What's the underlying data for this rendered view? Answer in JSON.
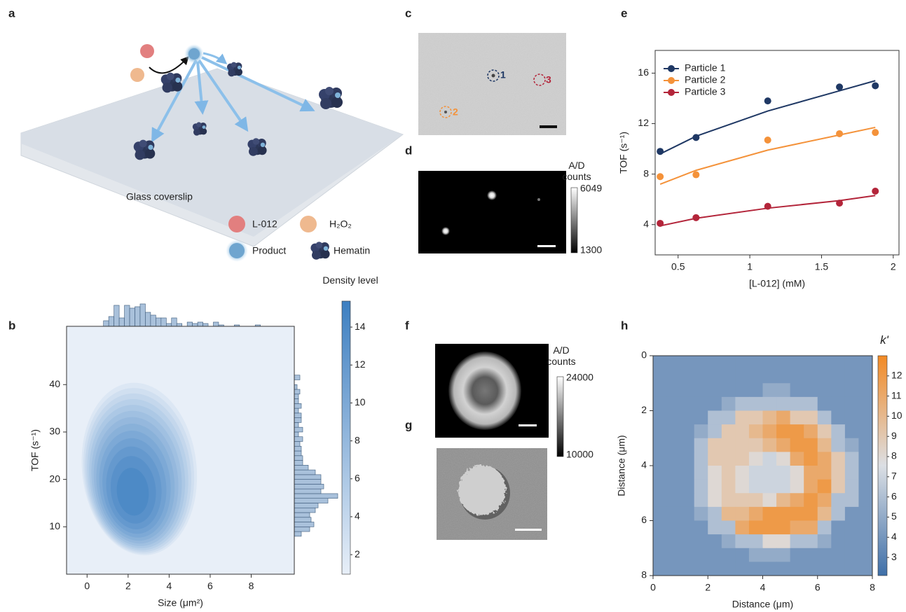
{
  "panel_labels": [
    "a",
    "b",
    "c",
    "d",
    "e",
    "f",
    "g",
    "h"
  ],
  "schematic": {
    "substrate": "Glass coverslip",
    "legend": [
      "L-012",
      "H₂O₂",
      "Product",
      "Hematin"
    ]
  },
  "micrographs": {
    "c": {
      "particles": [
        "1",
        "2",
        "3"
      ]
    },
    "d": {
      "colorbar_title": "A/D counts",
      "colorbar_ticks": [
        6049,
        1300
      ]
    },
    "f": {
      "colorbar_title": "A/D counts",
      "colorbar_ticks": [
        24000,
        10000
      ]
    }
  },
  "chart_data": [
    {
      "type": "kde",
      "xlabel": "Size (μm²)",
      "ylabel": "TOF (s⁻¹)",
      "xlim": [
        -1,
        10.1
      ],
      "xticks": [
        0,
        2,
        4,
        6,
        8
      ],
      "ylim": [
        0,
        52.3
      ],
      "yticks": [
        10,
        20,
        30,
        40
      ],
      "peak": {
        "x": 2.2,
        "y": 17
      },
      "hist_color": "#a9c1db",
      "top_hist": {
        "bins": [
          0.8,
          1.055,
          1.31,
          1.565,
          1.82,
          2.075,
          2.33,
          2.585,
          2.84,
          3.095,
          3.35,
          3.605,
          3.86,
          4.115,
          4.37,
          4.625,
          4.88,
          5.135,
          5.39,
          5.645,
          5.9,
          6.155,
          6.41,
          6.665,
          6.92,
          7.175,
          7.43,
          7.685,
          7.94,
          8.195,
          8.45
        ],
        "counts": [
          4,
          7,
          15,
          6,
          15,
          13,
          14,
          16,
          10,
          8,
          6,
          6,
          2,
          6,
          2,
          0,
          3,
          2,
          3,
          2,
          0,
          3,
          1,
          0,
          0,
          1,
          0,
          0,
          0,
          1
        ]
      },
      "right_hist": {
        "bins": [
          8,
          9,
          10,
          11,
          12,
          13,
          14,
          15,
          16,
          17,
          18,
          19,
          20,
          21,
          22,
          23,
          24,
          25,
          26,
          27,
          28,
          29,
          30,
          31,
          32,
          33,
          34,
          35,
          36,
          37,
          38,
          39,
          40,
          41,
          42
        ],
        "counts": [
          5,
          11,
          14,
          12,
          11,
          15,
          17,
          24,
          31,
          19,
          21,
          19,
          19,
          15,
          10,
          6,
          6,
          5,
          5,
          4,
          6,
          3,
          6,
          3,
          5,
          5,
          3,
          5,
          3,
          3,
          4,
          2,
          0,
          4
        ]
      },
      "colorbar": {
        "title": "Density level",
        "lim": [
          0.97,
          15.37
        ],
        "ticks": [
          2,
          4,
          6,
          8,
          10,
          12,
          14
        ],
        "colors": [
          "#e8eff8",
          "#3d7fc1"
        ]
      }
    },
    {
      "type": "scatter",
      "xlabel": "[L-012] (mM)",
      "ylabel": "TOF (s⁻¹)",
      "xlim": [
        0.34,
        2.04
      ],
      "xticks": [
        0.5,
        1,
        1.5,
        2
      ],
      "ylim": [
        1.6,
        17.8
      ],
      "yticks": [
        4,
        8,
        12,
        16
      ],
      "legend": "upper left",
      "x": [
        0.375,
        0.625,
        1.125,
        1.625,
        1.875
      ],
      "series": [
        {
          "name": "Particle 1",
          "color": "#1f3864",
          "values": [
            9.8,
            10.9,
            13.8,
            14.9,
            15.0
          ],
          "fit": [
            9.6,
            11.0,
            13.0,
            14.6,
            15.4
          ]
        },
        {
          "name": "Particle 2",
          "color": "#f4923a",
          "values": [
            7.8,
            7.95,
            10.7,
            11.2,
            11.3
          ],
          "fit": [
            7.2,
            8.3,
            9.9,
            11.1,
            11.7
          ]
        },
        {
          "name": "Particle 3",
          "color": "#b3253a",
          "values": [
            4.1,
            4.55,
            5.45,
            5.7,
            6.65
          ],
          "fit": [
            3.9,
            4.5,
            5.3,
            5.9,
            6.3
          ]
        }
      ]
    },
    {
      "type": "heatmap",
      "xlabel": "Distance (μm)",
      "ylabel": "Distance (μm)",
      "xlim": [
        0,
        8
      ],
      "xticks": [
        0,
        2,
        4,
        6,
        8
      ],
      "ylim": [
        0,
        8
      ],
      "yticks": [
        0,
        2,
        4,
        6,
        8
      ],
      "yreverse": true,
      "values": [
        [
          4,
          4,
          4,
          4,
          4,
          4,
          4,
          4,
          4,
          4,
          4,
          4,
          4,
          4,
          4,
          4
        ],
        [
          4,
          4,
          4,
          4,
          4,
          4,
          4,
          4,
          4,
          4,
          4,
          4,
          4,
          4,
          4,
          4
        ],
        [
          4,
          4,
          4,
          4,
          4,
          4,
          4,
          4,
          5,
          5,
          4,
          4,
          4,
          4,
          4,
          4
        ],
        [
          4,
          4,
          4,
          4,
          4,
          5,
          6,
          6,
          6,
          6,
          6,
          6,
          4,
          4,
          4,
          4
        ],
        [
          4,
          4,
          4,
          4,
          6,
          6,
          9,
          9,
          10,
          11,
          9,
          9,
          6,
          4,
          4,
          4
        ],
        [
          4,
          4,
          4,
          5,
          6,
          9,
          9,
          10,
          11,
          12,
          12,
          11,
          9,
          6,
          4,
          4
        ],
        [
          4,
          4,
          4,
          6,
          9,
          9,
          9,
          9,
          10,
          11,
          12,
          12,
          10,
          6,
          5,
          4
        ],
        [
          4,
          4,
          4,
          6,
          9,
          9,
          9,
          8,
          7,
          8,
          11,
          12,
          11,
          9,
          6,
          4
        ],
        [
          4,
          4,
          4,
          6,
          8,
          9,
          8,
          7,
          7,
          7,
          8,
          11,
          11,
          9,
          6,
          4
        ],
        [
          4,
          4,
          4,
          6,
          8,
          9,
          8,
          7,
          7,
          7,
          8,
          11,
          12,
          9,
          6,
          4
        ],
        [
          4,
          4,
          4,
          6,
          8,
          9,
          9,
          9,
          8,
          10,
          11,
          12,
          11,
          6,
          6,
          4
        ],
        [
          4,
          4,
          4,
          5,
          6,
          10,
          10,
          11,
          12,
          12,
          12,
          12,
          10,
          6,
          4,
          4
        ],
        [
          4,
          4,
          4,
          4,
          6,
          6,
          11,
          12,
          12,
          12,
          11,
          11,
          6,
          4,
          4,
          4
        ],
        [
          4,
          4,
          4,
          4,
          4,
          5,
          6,
          6,
          8,
          8,
          6,
          6,
          5,
          4,
          4,
          4
        ],
        [
          4,
          4,
          4,
          4,
          4,
          4,
          4,
          5,
          5,
          5,
          4,
          4,
          4,
          4,
          4,
          4
        ],
        [
          4,
          4,
          4,
          4,
          4,
          4,
          4,
          4,
          4,
          4,
          4,
          4,
          4,
          4,
          4,
          4
        ]
      ],
      "colorbar": {
        "title": "k'",
        "lim": [
          2.1,
          13.0
        ],
        "ticks": [
          3,
          4,
          5,
          6,
          7,
          8,
          9,
          10,
          11,
          12
        ],
        "colors": [
          "#3f6fa8",
          "#dcdfe4",
          "#f28a25"
        ]
      }
    }
  ]
}
